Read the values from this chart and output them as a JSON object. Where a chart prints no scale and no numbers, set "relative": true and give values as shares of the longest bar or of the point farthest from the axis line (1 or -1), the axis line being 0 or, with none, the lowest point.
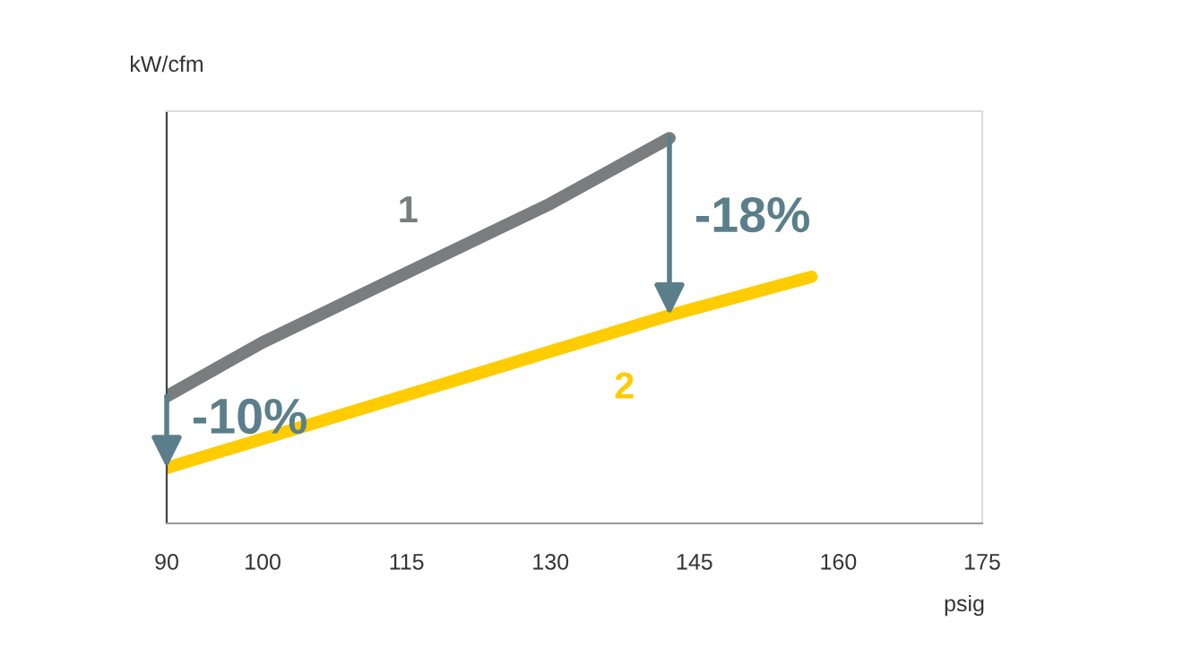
{
  "chart_data": {
    "type": "line",
    "relative": true,
    "xlabel": "psig",
    "ylabel": "kW/cfm",
    "xlim": [
      90,
      175
    ],
    "xticks": [
      90,
      100,
      115,
      130,
      145,
      160,
      175
    ],
    "grid": false,
    "legend": false,
    "marker": "none",
    "line_style": "solid",
    "series": [
      {
        "name": "1",
        "color": "#7a7d7d",
        "x": [
          90,
          100,
          115,
          130,
          142.4
        ],
        "values": [
          0.33,
          0.47,
          0.65,
          0.83,
          1
        ]
      },
      {
        "name": "2",
        "color": "#ffcc00",
        "x": [
          90,
          142.4,
          157.2
        ],
        "values": [
          0.144,
          0.54,
          0.64
        ]
      }
    ],
    "annotations": [
      "-10%",
      "-18%"
    ]
  }
}
